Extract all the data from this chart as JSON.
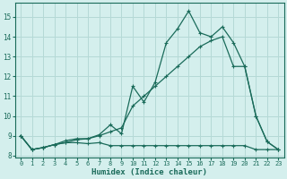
{
  "xlabel": "Humidex (Indice chaleur)",
  "xlim": [
    -0.5,
    23.5
  ],
  "ylim": [
    7.9,
    15.7
  ],
  "yticks": [
    8,
    9,
    10,
    11,
    12,
    13,
    14,
    15
  ],
  "xticks": [
    0,
    1,
    2,
    3,
    4,
    5,
    6,
    7,
    8,
    9,
    10,
    11,
    12,
    13,
    14,
    15,
    16,
    17,
    18,
    19,
    20,
    21,
    22,
    23
  ],
  "bg_color": "#d4efed",
  "grid_color": "#b5d9d6",
  "line_color": "#1a6b5a",
  "line1_y": [
    9.0,
    8.3,
    8.4,
    8.55,
    8.65,
    8.65,
    8.6,
    8.65,
    8.5,
    8.5,
    8.5,
    8.5,
    8.5,
    8.5,
    8.5,
    8.5,
    8.5,
    8.5,
    8.5,
    8.5,
    8.5,
    8.3,
    8.3,
    8.3
  ],
  "line2_y": [
    9.0,
    8.3,
    8.4,
    8.55,
    8.75,
    8.85,
    8.85,
    9.05,
    9.55,
    9.1,
    11.5,
    10.7,
    11.7,
    13.7,
    14.4,
    15.3,
    14.2,
    14.0,
    14.5,
    13.7,
    12.5,
    10.0,
    8.7,
    8.3
  ],
  "line3_y": [
    9.0,
    8.3,
    8.4,
    8.55,
    8.65,
    8.8,
    8.85,
    9.0,
    9.2,
    9.4,
    10.5,
    11.0,
    11.5,
    12.0,
    12.5,
    13.0,
    13.5,
    13.8,
    14.0,
    12.5,
    12.5,
    10.0,
    8.7,
    8.3
  ],
  "markersize": 3.5
}
